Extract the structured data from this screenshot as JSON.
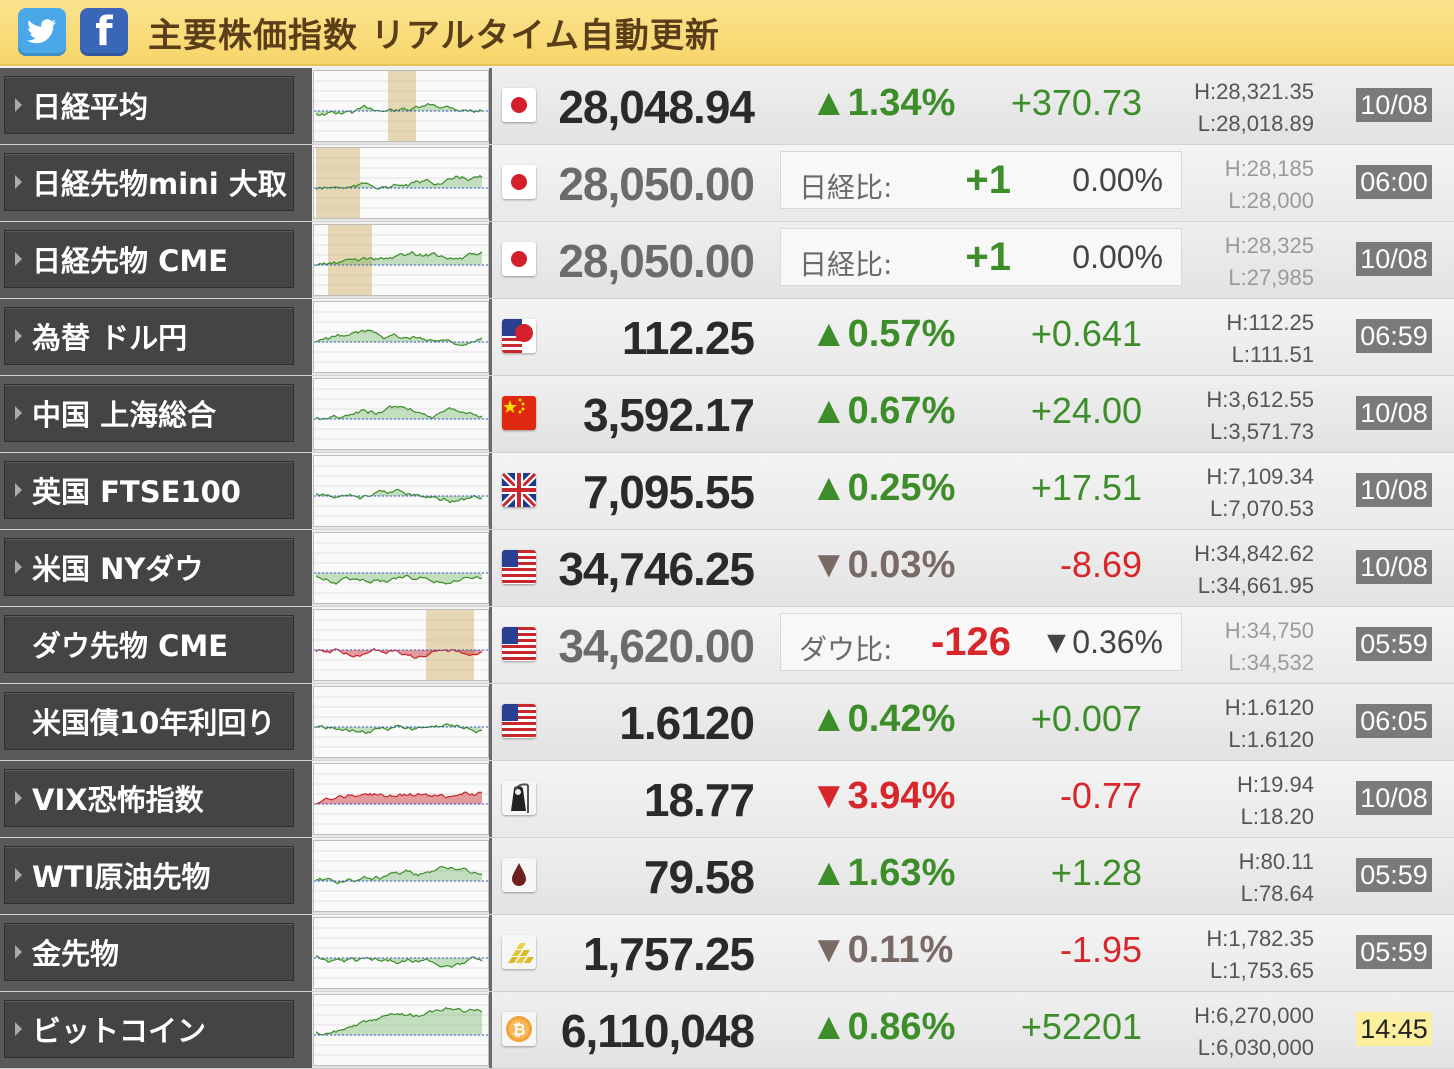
{
  "header": {
    "title": "主要株価指数 リアルタイム自動更新",
    "twitter_icon": "twitter-icon",
    "facebook_icon": "facebook-icon",
    "facebook_glyph": "f"
  },
  "colors": {
    "up": "#3d8d2a",
    "down": "#d8262a",
    "header": "#f7d56a",
    "name_bg": "#444444"
  },
  "rows": [
    {
      "name": "日経平均",
      "flag": "japan",
      "price": "28,048.94",
      "pct": "▲1.34%",
      "dir": "up",
      "chg": "+370.73",
      "high": "H:28,321.35",
      "low": "L:28,018.89",
      "time": "10/08"
    },
    {
      "name": "日経先物mini 大取",
      "flag": "japan",
      "price": "28,050.00",
      "future": {
        "label": "日経比:",
        "diff": "+1",
        "pct": "0.00%",
        "dir": "up"
      },
      "high": "H:28,185",
      "low": "L:28,000",
      "time": "06:00"
    },
    {
      "name": "日経先物 CME",
      "flag": "japan",
      "price": "28,050.00",
      "future": {
        "label": "日経比:",
        "diff": "+1",
        "pct": "0.00%",
        "dir": "up"
      },
      "high": "H:28,325",
      "low": "L:27,985",
      "time": "10/08"
    },
    {
      "name": "為替 ドル円",
      "flag": "usjp",
      "price": "112.25",
      "pct": "▲0.57%",
      "dir": "up",
      "chg": "+0.641",
      "high": "H:112.25",
      "low": "L:111.51",
      "time": "06:59"
    },
    {
      "name": "中国 上海総合",
      "flag": "china",
      "price": "3,592.17",
      "pct": "▲0.67%",
      "dir": "up",
      "chg": "+24.00",
      "high": "H:3,612.55",
      "low": "L:3,571.73",
      "time": "10/08"
    },
    {
      "name": "英国 FTSE100",
      "flag": "uk",
      "price": "7,095.55",
      "pct": "▲0.25%",
      "dir": "up",
      "chg": "+17.51",
      "high": "H:7,109.34",
      "low": "L:7,070.53",
      "time": "10/08"
    },
    {
      "name": "米国 NYダウ",
      "flag": "us",
      "price": "34,746.25",
      "pct": "▼0.03%",
      "dir": "flat",
      "chg": "-8.69",
      "high": "H:34,842.62",
      "low": "L:34,661.95",
      "time": "10/08"
    },
    {
      "name": "ダウ先物 CME",
      "flag": "us",
      "price": "34,620.00",
      "future": {
        "label": "ダウ比:",
        "diff": "-126",
        "pct": "▼0.36%",
        "dir": "down"
      },
      "high": "H:34,750",
      "low": "L:34,532",
      "time": "05:59"
    },
    {
      "name": "米国債10年利回り",
      "flag": "us",
      "price": "1.6120",
      "pct": "▲0.42%",
      "dir": "up",
      "chg": "+0.007",
      "high": "H:1.6120",
      "low": "L:1.6120",
      "time": "06:05"
    },
    {
      "name": "VIX恐怖指数",
      "flag": "reaper",
      "price": "18.77",
      "pct": "▼3.94%",
      "dir": "down",
      "chg": "-0.77",
      "high": "H:19.94",
      "low": "L:18.20",
      "time": "10/08"
    },
    {
      "name": "WTI原油先物",
      "flag": "oil",
      "price": "79.58",
      "pct": "▲1.63%",
      "dir": "up",
      "chg": "+1.28",
      "high": "H:80.11",
      "low": "L:78.64",
      "time": "05:59"
    },
    {
      "name": "金先物",
      "flag": "gold",
      "price": "1,757.25",
      "pct": "▼0.11%",
      "dir": "flat",
      "chg": "-1.95",
      "high": "H:1,782.35",
      "low": "L:1,753.65",
      "time": "05:59"
    },
    {
      "name": "ビットコイン",
      "flag": "bitcoin",
      "price": "6,110,048",
      "pct": "▲0.86%",
      "dir": "up",
      "chg": "+52201",
      "high": "H:6,270,000",
      "low": "L:6,030,000",
      "time": "14:45",
      "live": true
    }
  ]
}
